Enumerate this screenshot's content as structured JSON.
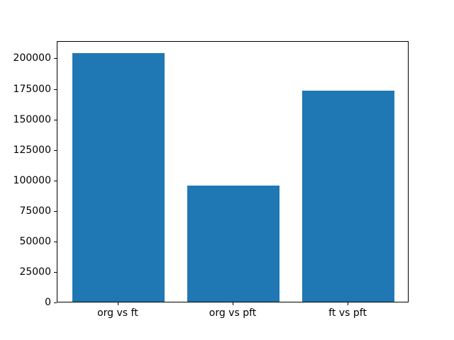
{
  "figure": {
    "background": "#ffffff",
    "frame_color": "#000000",
    "text_color": "#000000"
  },
  "chart_data": {
    "type": "bar",
    "title": "",
    "xlabel": "",
    "ylabel": "",
    "categories": [
      "org vs ft",
      "org vs pft",
      "ft vs pft"
    ],
    "values": [
      204000,
      95000,
      173000
    ],
    "bar_color": "#1f77b4",
    "bar_width_units": 0.8,
    "xlim": [
      -0.53,
      2.53
    ],
    "ylim": [
      0,
      214200
    ],
    "yticks": [
      0,
      25000,
      50000,
      75000,
      100000,
      125000,
      150000,
      175000,
      200000
    ],
    "grid": false,
    "legend": null
  }
}
